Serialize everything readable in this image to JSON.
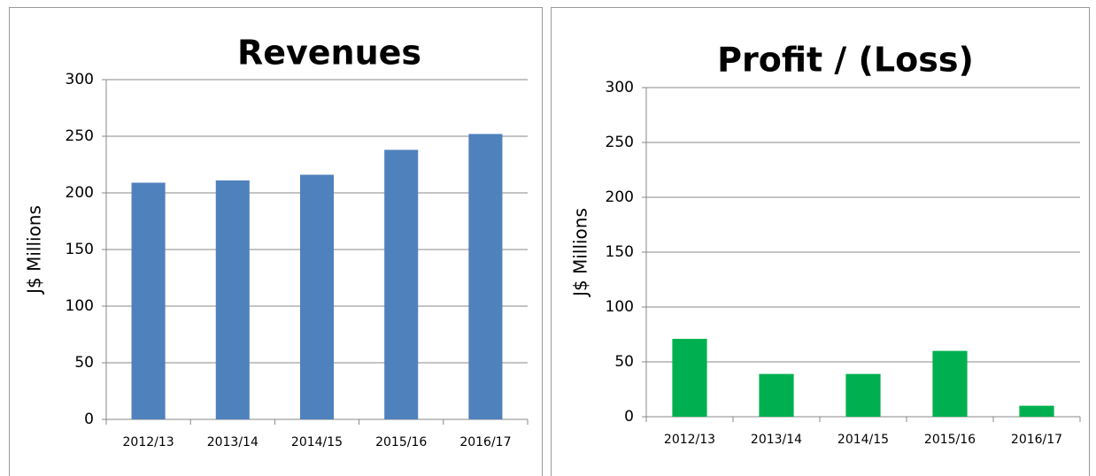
{
  "chart_data": [
    {
      "type": "bar",
      "title": "Revenues",
      "y_label": "J$ Millions",
      "categories": [
        "2012/13",
        "2013/14",
        "2014/15",
        "2015/16",
        "2016/17"
      ],
      "values": [
        209,
        211,
        216,
        238,
        252
      ],
      "color": "#4f81bd",
      "ylim": [
        0,
        300
      ],
      "yticks": [
        0,
        50,
        100,
        150,
        200,
        250,
        300
      ],
      "grid": true
    },
    {
      "type": "bar",
      "title": "Profit / (Loss)",
      "y_label": "J$ Millions",
      "categories": [
        "2012/13",
        "2013/14",
        "2014/15",
        "2015/16",
        "2016/17"
      ],
      "values": [
        71,
        39,
        39,
        60,
        10
      ],
      "color": "#00b050",
      "ylim": [
        0,
        300
      ],
      "yticks": [
        0,
        50,
        100,
        150,
        200,
        250,
        300
      ],
      "grid": true
    }
  ]
}
